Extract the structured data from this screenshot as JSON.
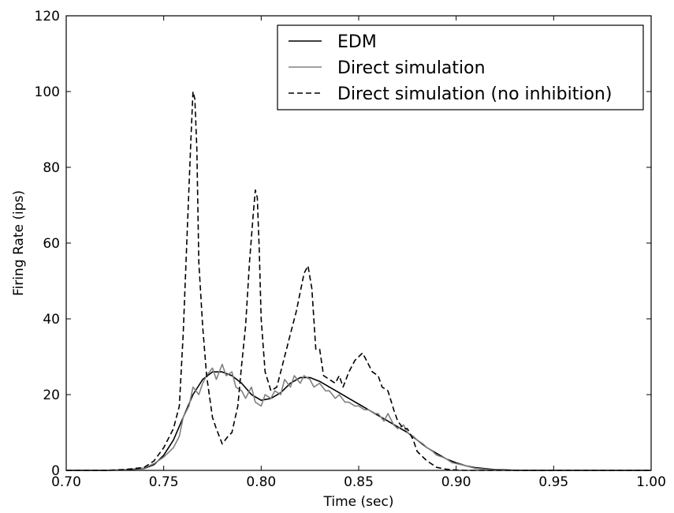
{
  "chart_data": {
    "type": "line",
    "title": "",
    "xlabel": "Time (sec)",
    "ylabel": "Firing Rate (ips)",
    "xlim": [
      0.7,
      1.0
    ],
    "ylim": [
      0,
      120
    ],
    "x_ticks": [
      0.7,
      0.75,
      0.8,
      0.85,
      0.9,
      0.95,
      1.0
    ],
    "x_tick_labels": [
      "0.70",
      "0.75",
      "0.80",
      "0.85",
      "0.90",
      "0.95",
      "1.00"
    ],
    "y_ticks": [
      0,
      20,
      40,
      60,
      80,
      100,
      120
    ],
    "y_tick_labels": [
      "0",
      "20",
      "40",
      "60",
      "80",
      "100",
      "120"
    ],
    "grid": false,
    "legend_position": "top-right",
    "series": [
      {
        "name": "EDM",
        "color": "#000000",
        "style": "solid",
        "x": [
          0.7,
          0.72,
          0.73,
          0.74,
          0.745,
          0.75,
          0.755,
          0.76,
          0.765,
          0.77,
          0.775,
          0.78,
          0.785,
          0.79,
          0.795,
          0.8,
          0.805,
          0.81,
          0.815,
          0.82,
          0.825,
          0.83,
          0.835,
          0.84,
          0.845,
          0.85,
          0.855,
          0.86,
          0.865,
          0.87,
          0.875,
          0.88,
          0.885,
          0.89,
          0.895,
          0.9,
          0.905,
          0.91,
          0.92,
          0.93,
          0.95,
          1.0
        ],
        "y": [
          0,
          0,
          0.1,
          0.5,
          1.5,
          4,
          8,
          14,
          20,
          24,
          26,
          26,
          25,
          23,
          20,
          18.5,
          19,
          20.5,
          23,
          24.5,
          24.5,
          23.5,
          22,
          20.5,
          19,
          17.5,
          16,
          14.5,
          13,
          11.5,
          10,
          8,
          6,
          4.5,
          3,
          2,
          1.2,
          0.7,
          0.2,
          0.05,
          0,
          0
        ]
      },
      {
        "name": "Direct simulation",
        "color": "#808080",
        "style": "solid",
        "x": [
          0.7,
          0.72,
          0.73,
          0.74,
          0.745,
          0.75,
          0.755,
          0.758,
          0.76,
          0.763,
          0.765,
          0.768,
          0.77,
          0.772,
          0.775,
          0.777,
          0.78,
          0.782,
          0.785,
          0.787,
          0.79,
          0.792,
          0.795,
          0.797,
          0.8,
          0.802,
          0.805,
          0.807,
          0.81,
          0.812,
          0.815,
          0.817,
          0.82,
          0.822,
          0.825,
          0.827,
          0.83,
          0.833,
          0.835,
          0.838,
          0.84,
          0.843,
          0.845,
          0.848,
          0.85,
          0.853,
          0.855,
          0.858,
          0.86,
          0.863,
          0.865,
          0.868,
          0.87,
          0.873,
          0.875,
          0.878,
          0.88,
          0.883,
          0.885,
          0.888,
          0.89,
          0.893,
          0.895,
          0.898,
          0.9,
          0.905,
          0.91,
          0.92,
          0.93,
          0.95,
          1.0
        ],
        "y": [
          0,
          0,
          0.2,
          0.6,
          1.8,
          3.5,
          6,
          9,
          14,
          17,
          22,
          20,
          23,
          25,
          27,
          24,
          28,
          25,
          26,
          22,
          21,
          19,
          22,
          18,
          17,
          20,
          19,
          21,
          20,
          24,
          22,
          25,
          23,
          25,
          24,
          22,
          23,
          21,
          21,
          19,
          20,
          18,
          18,
          17,
          17,
          16,
          16,
          15,
          15,
          13,
          15,
          12,
          11,
          12,
          10,
          9,
          8,
          7,
          6,
          5,
          4,
          3.5,
          3,
          2,
          1.8,
          1.2,
          0.5,
          0.1,
          0,
          0,
          0
        ]
      },
      {
        "name": "Direct simulation (no inhibition)",
        "color": "#000000",
        "style": "dashed",
        "x": [
          0.7,
          0.72,
          0.73,
          0.74,
          0.745,
          0.75,
          0.755,
          0.758,
          0.76,
          0.762,
          0.764,
          0.765,
          0.766,
          0.767,
          0.768,
          0.77,
          0.772,
          0.775,
          0.777,
          0.78,
          0.783,
          0.785,
          0.788,
          0.79,
          0.792,
          0.794,
          0.796,
          0.797,
          0.798,
          0.799,
          0.8,
          0.802,
          0.805,
          0.808,
          0.81,
          0.812,
          0.815,
          0.818,
          0.82,
          0.822,
          0.824,
          0.826,
          0.827,
          0.828,
          0.83,
          0.832,
          0.835,
          0.838,
          0.84,
          0.842,
          0.845,
          0.848,
          0.85,
          0.852,
          0.855,
          0.857,
          0.86,
          0.862,
          0.865,
          0.868,
          0.87,
          0.873,
          0.875,
          0.878,
          0.88,
          0.883,
          0.885,
          0.888,
          0.89,
          0.895,
          0.9,
          0.905,
          0.91,
          0.92,
          0.93,
          0.95,
          1.0
        ],
        "y": [
          0,
          0,
          0.2,
          0.8,
          2.5,
          6,
          11,
          17,
          36,
          62,
          88,
          100,
          98,
          85,
          55,
          38,
          25,
          14,
          11,
          7,
          9,
          10,
          17,
          28,
          38,
          55,
          68,
          74,
          72,
          58,
          40,
          26,
          21,
          22,
          26,
          30,
          36,
          42,
          47,
          52,
          54,
          48,
          40,
          32,
          32,
          25,
          24,
          23,
          25,
          22,
          26,
          29,
          30,
          31,
          28,
          26,
          25,
          22,
          21,
          16,
          13,
          11,
          11,
          8,
          5,
          3.5,
          2.5,
          1.5,
          0.8,
          0.3,
          0.1,
          0,
          0,
          0,
          0,
          0,
          0
        ]
      }
    ]
  }
}
